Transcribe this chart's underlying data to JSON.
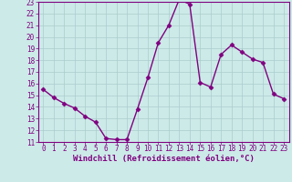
{
  "x": [
    0,
    1,
    2,
    3,
    4,
    5,
    6,
    7,
    8,
    9,
    10,
    11,
    12,
    13,
    14,
    15,
    16,
    17,
    18,
    19,
    20,
    21,
    22,
    23
  ],
  "y": [
    15.5,
    14.8,
    14.3,
    13.9,
    13.2,
    12.7,
    11.3,
    11.2,
    11.2,
    13.8,
    16.5,
    19.5,
    21.0,
    23.2,
    22.8,
    16.1,
    15.7,
    18.5,
    19.3,
    18.7,
    18.1,
    17.8,
    15.1,
    14.7
  ],
  "line_color": "#800080",
  "marker": "D",
  "marker_size": 2.5,
  "bg_color": "#cceae8",
  "grid_color": "#aacccc",
  "xlabel": "Windchill (Refroidissement éolien,°C)",
  "ylim": [
    11,
    23
  ],
  "xlim": [
    -0.5,
    23.5
  ],
  "yticks": [
    11,
    12,
    13,
    14,
    15,
    16,
    17,
    18,
    19,
    20,
    21,
    22,
    23
  ],
  "xticks": [
    0,
    1,
    2,
    3,
    4,
    5,
    6,
    7,
    8,
    9,
    10,
    11,
    12,
    13,
    14,
    15,
    16,
    17,
    18,
    19,
    20,
    21,
    22,
    23
  ],
  "tick_fontsize": 5.5,
  "xlabel_fontsize": 6.5,
  "line_width": 1.0,
  "spine_color": "#800080"
}
